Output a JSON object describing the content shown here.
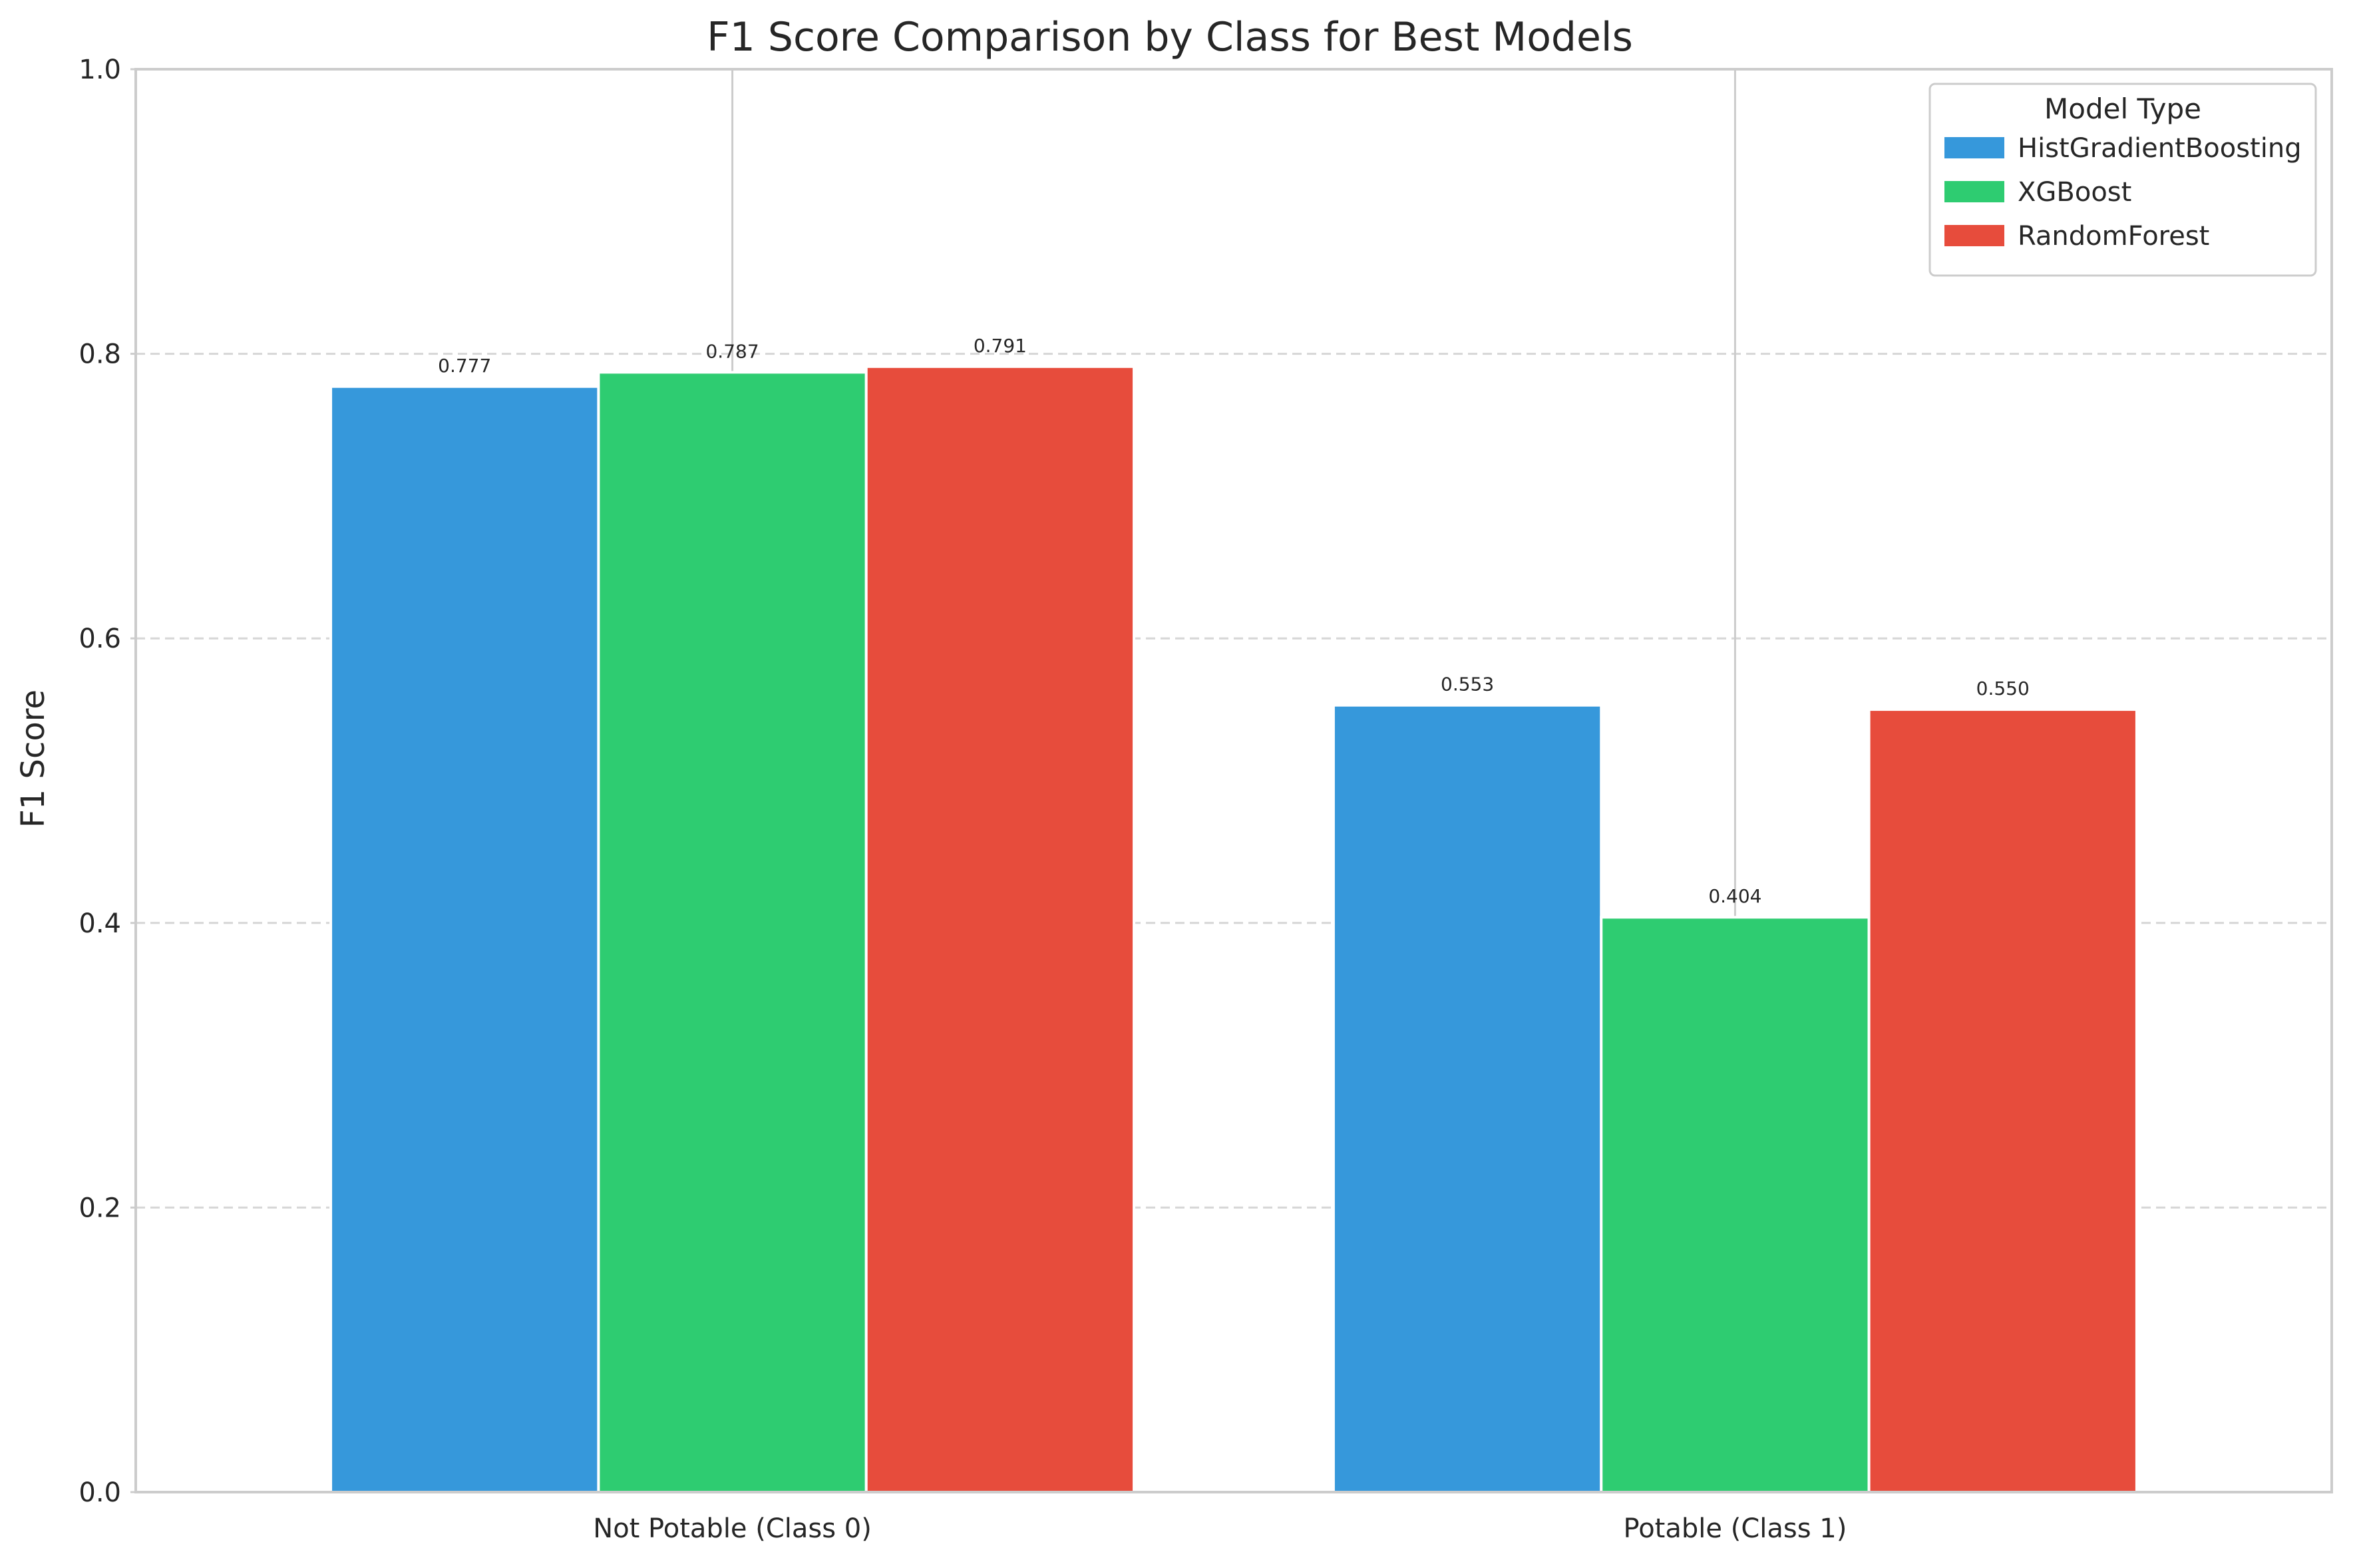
{
  "chart_data": {
    "type": "bar",
    "title": "F1 Score Comparison by Class for Best Models",
    "xlabel": "",
    "ylabel": "F1 Score",
    "categories": [
      "Not Potable (Class 0)",
      "Potable (Class 1)"
    ],
    "series": [
      {
        "name": "HistGradientBoosting",
        "color": "#3698db",
        "values": [
          0.777,
          0.553
        ],
        "labels": [
          "0.777",
          "0.553"
        ]
      },
      {
        "name": "XGBoost",
        "color": "#2ecc71",
        "values": [
          0.787,
          0.404
        ],
        "labels": [
          "0.787",
          "0.404"
        ]
      },
      {
        "name": "RandomForest",
        "color": "#e74c3c",
        "values": [
          0.791,
          0.55
        ],
        "labels": [
          "0.791",
          "0.550"
        ]
      }
    ],
    "ylim": [
      0,
      1.0
    ],
    "yticks": [
      0.0,
      0.2,
      0.4,
      0.6,
      0.8,
      1.0
    ],
    "ytick_labels": [
      "0.0",
      "0.2",
      "0.4",
      "0.6",
      "0.8",
      "1.0"
    ],
    "grid": {
      "y": "dashed",
      "x": "solid at category centers"
    },
    "legend": {
      "title": "Model Type",
      "placement": "top-right"
    }
  }
}
